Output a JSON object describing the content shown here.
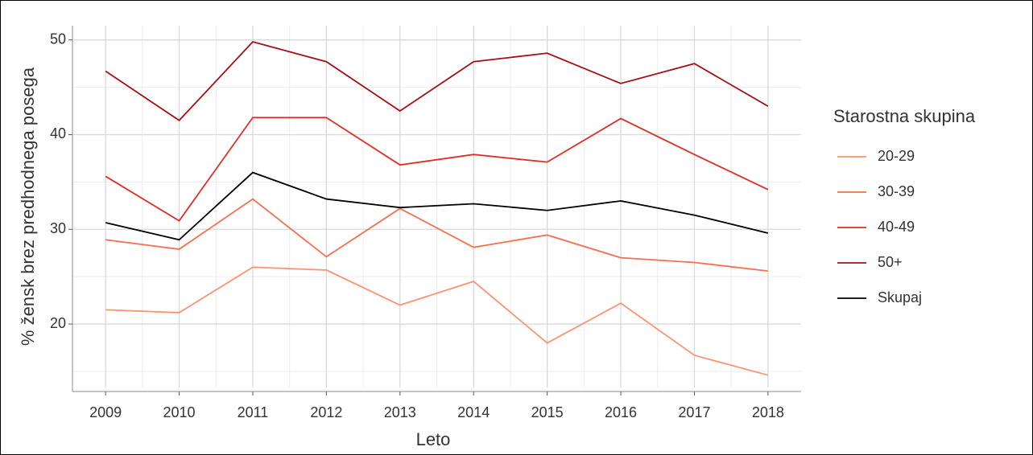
{
  "chart_data": {
    "type": "line",
    "x_label": "Leto",
    "y_label": "% žensk brez predhodnega posega",
    "legend_title": "Starostna skupina",
    "legend_position": "right",
    "grid": true,
    "x": [
      2009,
      2010,
      2011,
      2012,
      2013,
      2014,
      2015,
      2016,
      2017,
      2018
    ],
    "xlim": [
      2008.55,
      2018.45
    ],
    "xticks": [
      2009,
      2010,
      2011,
      2012,
      2013,
      2014,
      2015,
      2016,
      2017,
      2018
    ],
    "ylim": [
      13.3,
      51.5
    ],
    "yticks": [
      20,
      30,
      40,
      50
    ],
    "series": [
      {
        "name": "20-29",
        "color": "#fc9272",
        "values": [
          21.5,
          21.2,
          26.0,
          25.7,
          22.0,
          24.5,
          18.0,
          22.2,
          16.7,
          14.6
        ]
      },
      {
        "name": "30-39",
        "color": "#f4704f",
        "values": [
          28.9,
          27.9,
          33.2,
          27.1,
          32.2,
          28.1,
          29.4,
          27.0,
          26.5,
          25.6
        ]
      },
      {
        "name": "40-49",
        "color": "#de2d26",
        "values": [
          35.6,
          30.9,
          41.8,
          41.8,
          36.8,
          37.9,
          37.1,
          41.7,
          37.9,
          34.2
        ]
      },
      {
        "name": "50+",
        "color": "#a50f15",
        "values": [
          46.7,
          41.5,
          49.8,
          47.7,
          42.5,
          47.7,
          48.6,
          45.4,
          47.5,
          43.0
        ]
      },
      {
        "name": "Skupaj",
        "color": "#000000",
        "values": [
          30.7,
          28.9,
          36.0,
          33.2,
          32.3,
          32.7,
          32.0,
          33.0,
          31.5,
          29.6
        ]
      }
    ]
  }
}
